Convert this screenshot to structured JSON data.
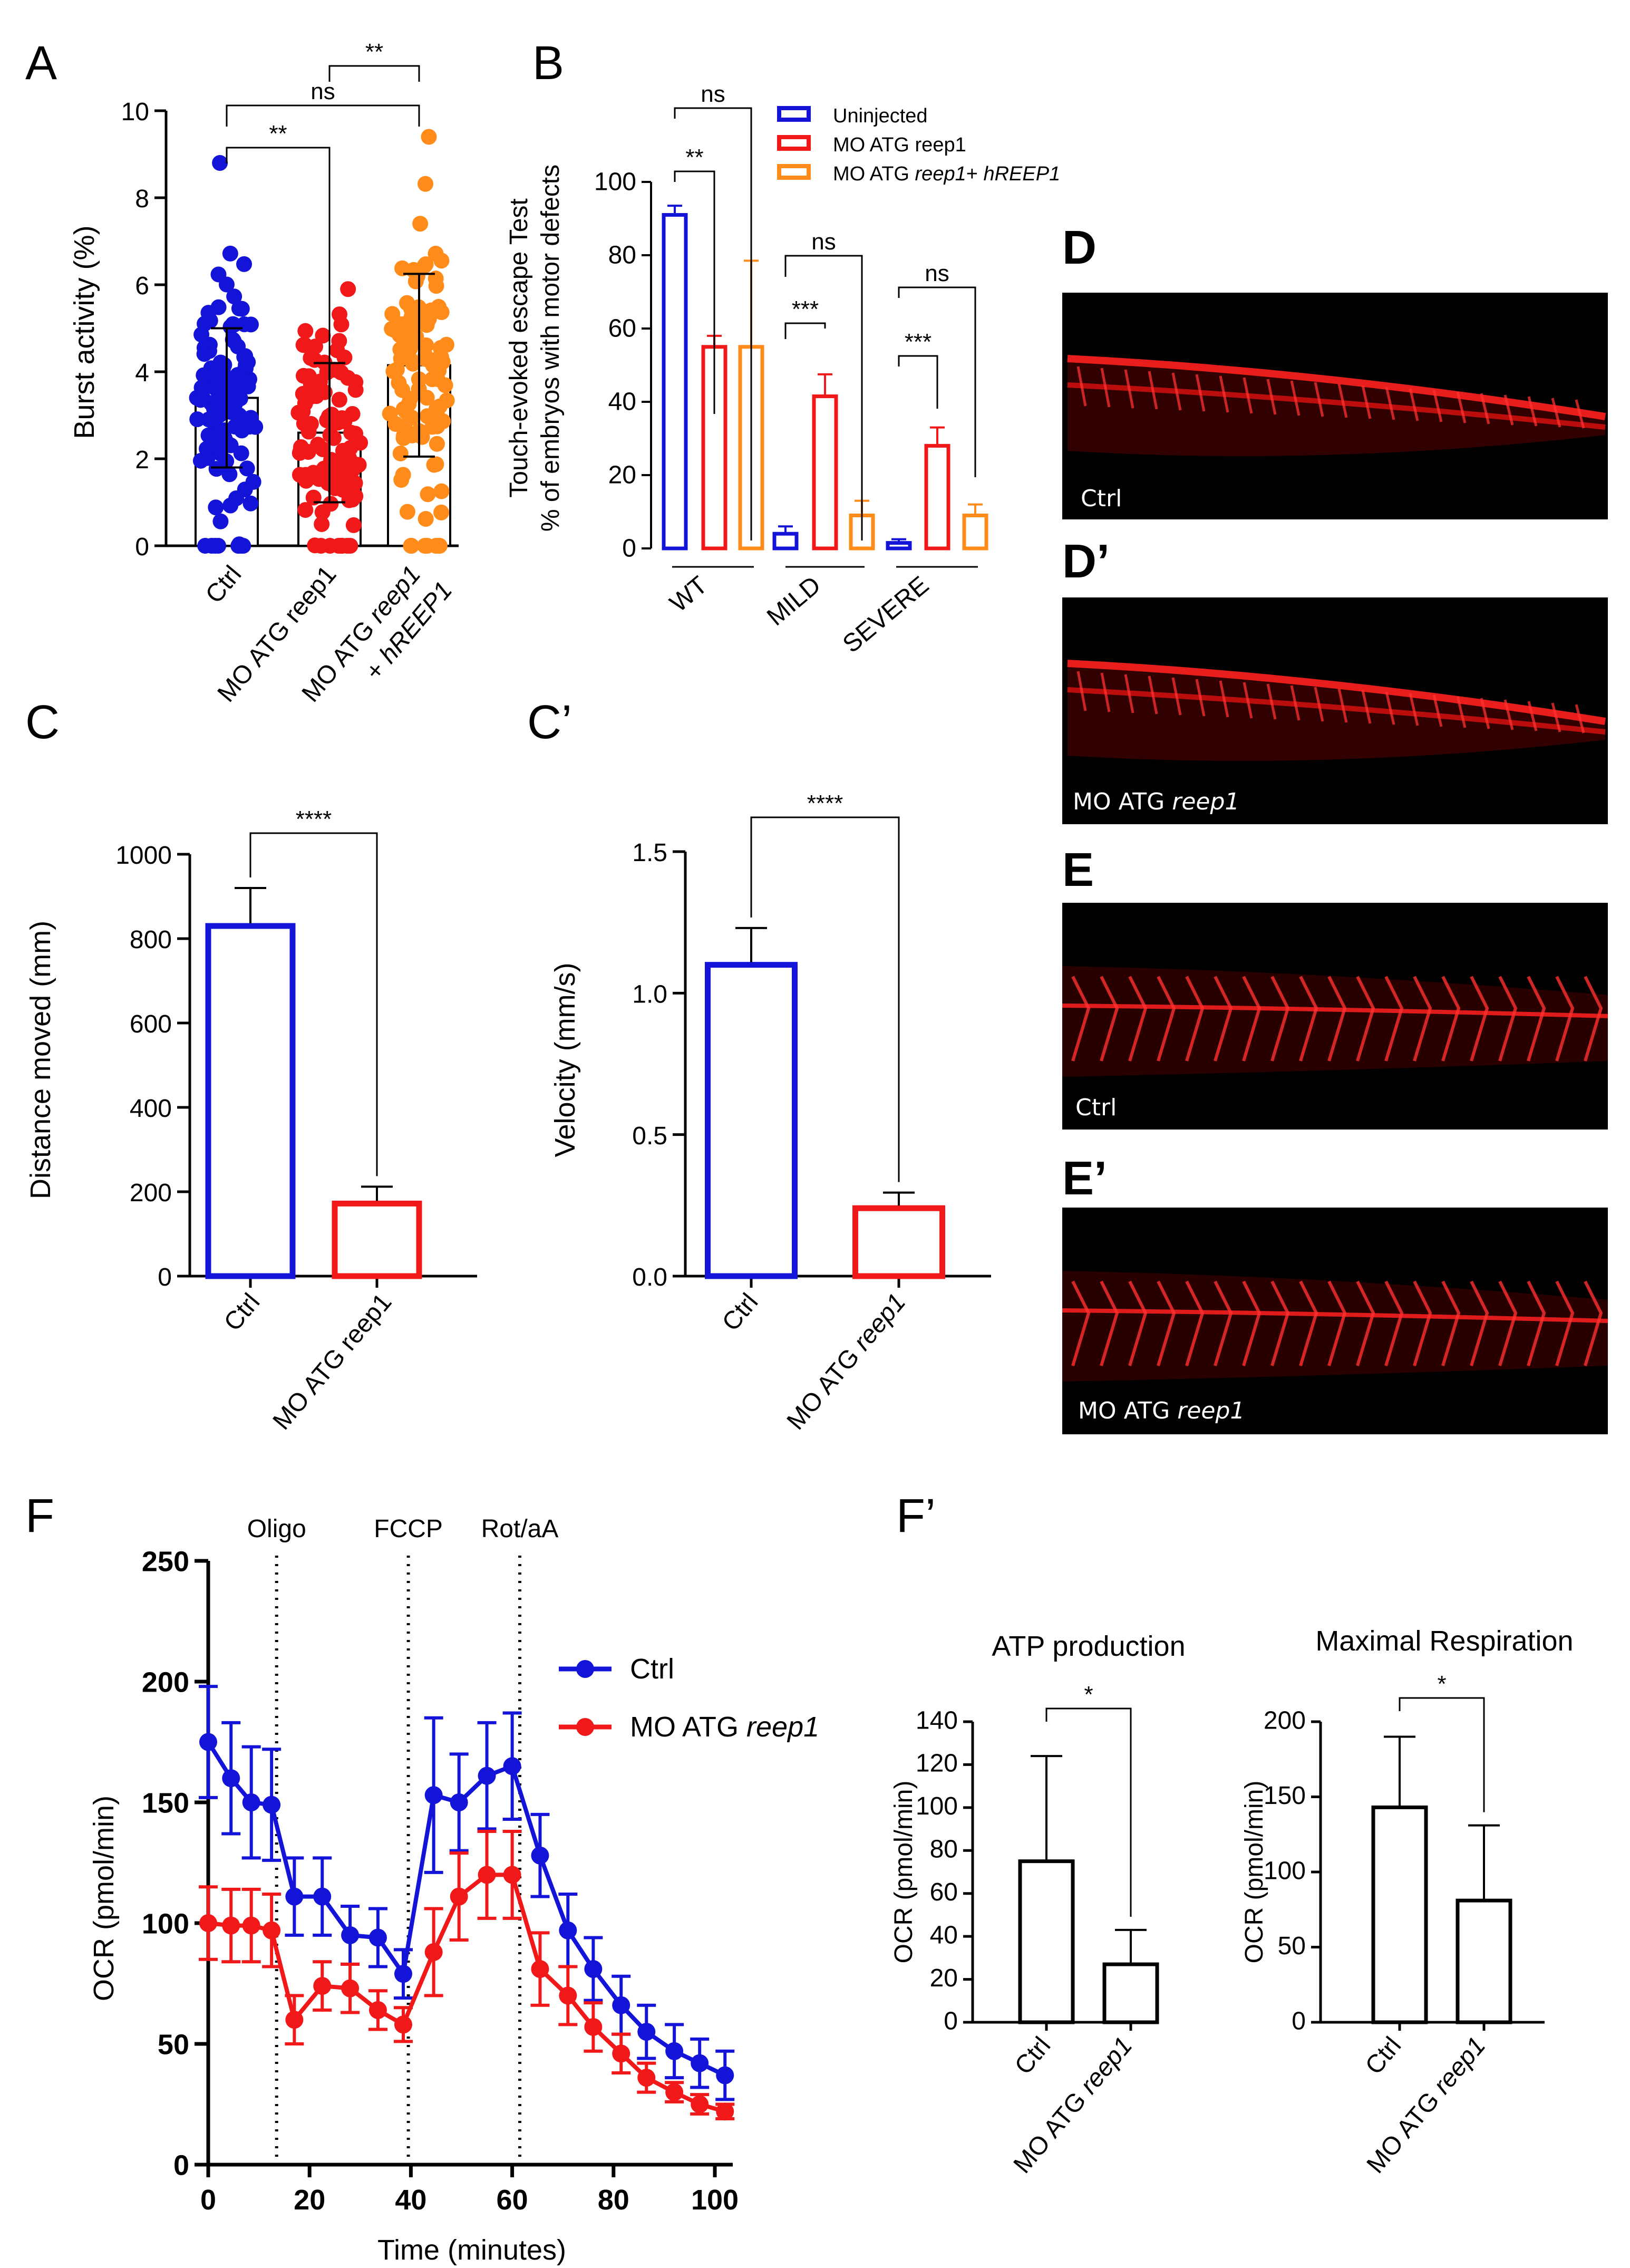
{
  "colors": {
    "ctrl": "#1414d8",
    "mo": "#f01818",
    "rescue": "#ff8c1a",
    "black": "#000000"
  },
  "panels": {
    "A": {
      "label": "A"
    },
    "B": {
      "label": "B"
    },
    "C": {
      "label": "C"
    },
    "Cp": {
      "label": "C’"
    },
    "D": {
      "label": "D",
      "caption": "Ctrl"
    },
    "Dp": {
      "label": "D’",
      "caption_plain": "MO ATG ",
      "caption_italic": "reep1"
    },
    "E": {
      "label": "E",
      "caption": "Ctrl"
    },
    "Ep": {
      "label": "E’",
      "caption_plain": "MO ATG ",
      "caption_italic": "reep1"
    },
    "F": {
      "label": "F"
    },
    "Fp": {
      "label": "F’"
    }
  },
  "chart_data": [
    {
      "id": "A",
      "type": "bar",
      "title": "",
      "ylabel": "Burst activity (%)",
      "ylim": [
        0,
        10
      ],
      "yticks": [
        "0",
        "2",
        "4",
        "6",
        "8",
        "10"
      ],
      "categories": [
        "Ctrl",
        "MO ATG reep1",
        "MO ATG reep1 + hREEP1"
      ],
      "cat_labels": [
        {
          "plain": "Ctrl"
        },
        {
          "plain": "MO ATG reep1"
        },
        {
          "line1_plain": "MO ATG ",
          "line1_italic": "reep1",
          "line2_plain": "+ ",
          "line2_italic": "hREEP1"
        }
      ],
      "values": [
        3.4,
        2.6,
        4.15
      ],
      "sd": [
        1.6,
        1.6,
        2.1
      ],
      "point_ranges": [
        [
          0,
          8.8
        ],
        [
          0,
          5.9
        ],
        [
          0,
          9.4
        ]
      ],
      "points_per_group": 110,
      "significance": [
        {
          "from": 0,
          "to": 1,
          "label": "**"
        },
        {
          "from": 0,
          "to": 2,
          "label": "ns"
        },
        {
          "from": 1,
          "to": 2,
          "label": "**"
        }
      ]
    },
    {
      "id": "B",
      "type": "bar",
      "ylabel_line1": "Touch-evoked escape Test",
      "ylabel_line2": "% of embryos with motor defects",
      "ylim": [
        0,
        100
      ],
      "yticks": [
        "0",
        "20",
        "40",
        "60",
        "80",
        "100"
      ],
      "categories": [
        "WT",
        "MILD",
        "SEVERE"
      ],
      "series": [
        {
          "name": "Uninjected",
          "values": [
            91,
            4,
            1.5
          ],
          "err": [
            2.5,
            2,
            1
          ]
        },
        {
          "name": "MO ATG reep1",
          "values": [
            55,
            41.5,
            28
          ],
          "err": [
            3,
            6,
            5
          ]
        },
        {
          "name": "MO ATG reep1+ hREEP1",
          "values": [
            55,
            9,
            9
          ],
          "err": [
            23.5,
            4,
            3
          ]
        }
      ],
      "legend": [
        {
          "plain": "Uninjected"
        },
        {
          "plain": "MO ATG reep1"
        },
        {
          "plain": "MO ATG ",
          "italic": "reep1",
          "plain2": "+ ",
          "italic2": "hREEP1"
        }
      ],
      "significance": [
        {
          "group": "WT",
          "label1": "**",
          "label2": "ns"
        },
        {
          "group": "MILD",
          "label1": "***",
          "label2": "ns"
        },
        {
          "group": "SEVERE",
          "label1": "***",
          "label2": "ns"
        }
      ]
    },
    {
      "id": "C",
      "type": "bar",
      "ylabel": "Distance moved (mm)",
      "ylim": [
        0,
        1000
      ],
      "yticks": [
        "0",
        "200",
        "400",
        "600",
        "800",
        "1000"
      ],
      "categories": [
        "Ctrl",
        "MO ATG reep1"
      ],
      "values": [
        830,
        172
      ],
      "err": [
        90,
        40
      ],
      "significance": "****"
    },
    {
      "id": "Cp",
      "type": "bar",
      "ylabel": "Velocity (mm/s)",
      "ylim": [
        0,
        1.5
      ],
      "yticks": [
        "0.0",
        "0.5",
        "1.0",
        "1.5"
      ],
      "categories": [
        "Ctrl",
        "MO ATG reep1"
      ],
      "cat_labels": [
        {
          "plain": "Ctrl"
        },
        {
          "plain": "MO ATG ",
          "italic": "reep1"
        }
      ],
      "values": [
        1.1,
        0.24
      ],
      "err": [
        0.13,
        0.055
      ],
      "significance": "****"
    },
    {
      "id": "F",
      "type": "line",
      "xlabel": "Time (minutes)",
      "ylabel": "OCR (pmol/min)",
      "xlim": [
        0,
        104
      ],
      "ylim": [
        0,
        250
      ],
      "xticks": [
        "0",
        "20",
        "40",
        "60",
        "80",
        "100"
      ],
      "yticks": [
        "0",
        "50",
        "100",
        "150",
        "200",
        "250"
      ],
      "vlines": [
        {
          "x": 13.5,
          "label": "Oligo"
        },
        {
          "x": 39.5,
          "label": "FCCP"
        },
        {
          "x": 61.5,
          "label": "Rot/aA"
        }
      ],
      "x": [
        0,
        4.5,
        8.5,
        12.5,
        17,
        22.5,
        28,
        33.5,
        38.5,
        44.5,
        49.5,
        55,
        60,
        65.5,
        71,
        76,
        81.5,
        86.5,
        92,
        97,
        102
      ],
      "series": [
        {
          "name": "Ctrl",
          "values": [
            175,
            160,
            150,
            149,
            111,
            111,
            95,
            94,
            79,
            153,
            150,
            161,
            165,
            128,
            97,
            81,
            66,
            55,
            47,
            42,
            37
          ],
          "err": [
            23,
            23,
            23,
            23,
            16,
            16,
            12,
            12,
            10,
            32,
            20,
            22,
            22,
            17,
            15,
            13,
            12,
            11,
            11,
            10,
            10
          ]
        },
        {
          "name": "MO ATG reep1",
          "name_plain": "MO ATG ",
          "name_italic": "reep1",
          "values": [
            100,
            99,
            99,
            97,
            60,
            74,
            73,
            64,
            58,
            88,
            111,
            120,
            120,
            81,
            70,
            57,
            46,
            36,
            30,
            25,
            22
          ],
          "err": [
            15,
            15,
            15,
            15,
            10,
            10,
            10,
            8,
            7,
            18,
            18,
            18,
            18,
            15,
            12,
            10,
            8,
            6,
            4,
            4,
            3
          ]
        }
      ]
    },
    {
      "id": "Fp1",
      "type": "bar",
      "title": "ATP production",
      "ylabel": "OCR (pmol/min)",
      "ylim": [
        0,
        140
      ],
      "yticks": [
        "0",
        "20",
        "40",
        "60",
        "80",
        "100",
        "120",
        "140"
      ],
      "categories": [
        "Ctrl",
        "MO ATG reep1"
      ],
      "cat_labels": [
        {
          "plain": "Ctrl"
        },
        {
          "plain": "MO ATG ",
          "italic": "reep1"
        }
      ],
      "values": [
        75,
        27
      ],
      "err": [
        49,
        16
      ],
      "significance": "*"
    },
    {
      "id": "Fp2",
      "type": "bar",
      "title": "Maximal Respiration",
      "ylabel": "OCR (pmol/min)",
      "ylim": [
        0,
        200
      ],
      "yticks": [
        "0",
        "50",
        "100",
        "150",
        "200"
      ],
      "categories": [
        "Ctrl",
        "MO ATG reep1"
      ],
      "cat_labels": [
        {
          "plain": "Ctrl"
        },
        {
          "plain": "MO ATG ",
          "italic": "reep1"
        }
      ],
      "values": [
        143,
        81
      ],
      "err": [
        47,
        50
      ],
      "significance": "*"
    }
  ]
}
